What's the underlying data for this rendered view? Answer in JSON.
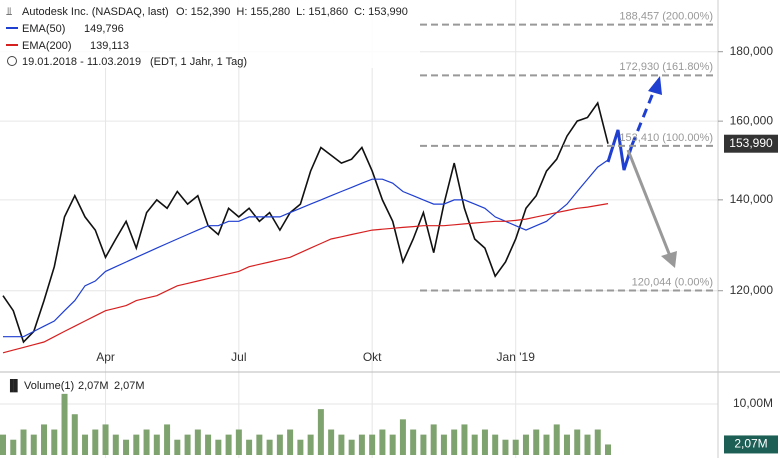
{
  "chart_data": {
    "type": "line",
    "title": "Autodesk Inc. (NASDAQ, last)",
    "ohlc": {
      "labels": [
        "O:",
        "H:",
        "L:",
        "C:"
      ],
      "values": [
        152390,
        155280,
        151860,
        153990
      ],
      "value_labels": [
        "152,390",
        "155,280",
        "151,860",
        "153,990"
      ]
    },
    "period": "19.01.2018 - 11.03.2019",
    "period_note": "(EDT, 1 Jahr, 1 Tag)",
    "log_scale": true,
    "grid": true,
    "categories": [
      null,
      null,
      null,
      null,
      null,
      null,
      null,
      null,
      null,
      null,
      "Apr",
      null,
      null,
      null,
      null,
      null,
      null,
      null,
      null,
      null,
      null,
      null,
      null,
      "Jul",
      null,
      null,
      null,
      null,
      null,
      null,
      null,
      null,
      null,
      null,
      null,
      null,
      "Okt",
      null,
      null,
      null,
      null,
      null,
      null,
      null,
      null,
      null,
      null,
      null,
      null,
      null,
      "Jan '19",
      null,
      null,
      null,
      null,
      null,
      null,
      null,
      null,
      null
    ],
    "ylim": [
      104900,
      196500
    ],
    "yticks": [
      {
        "value": 120000,
        "label": "120,000"
      },
      {
        "value": 140000,
        "label": "140,000"
      },
      {
        "value": 160000,
        "label": "160,000"
      },
      {
        "value": 180000,
        "label": "180,000"
      }
    ],
    "last_price": {
      "value": 153990,
      "label": "153,990"
    },
    "series": [
      {
        "name": "Autodesk Inc.",
        "color": "#111111",
        "values": [
          119000,
          116000,
          110000,
          112000,
          118000,
          125000,
          136000,
          141000,
          136000,
          133000,
          127000,
          131000,
          135000,
          129000,
          137000,
          140000,
          138000,
          142000,
          139000,
          141000,
          134000,
          132000,
          138000,
          136000,
          138000,
          135000,
          137000,
          133000,
          137000,
          139000,
          147000,
          153000,
          151000,
          149000,
          150000,
          153000,
          147000,
          140000,
          135000,
          126000,
          131000,
          137000,
          128000,
          139000,
          149000,
          138000,
          131000,
          129000,
          123000,
          126000,
          131000,
          138000,
          141000,
          147000,
          150000,
          156000,
          160000,
          161000,
          165000,
          153990
        ]
      },
      {
        "name": "EMA(50)",
        "color": "#1f3fd1",
        "value_label": "149,796",
        "values": [
          111000,
          111000,
          111000,
          112000,
          113000,
          114000,
          116000,
          118000,
          121000,
          122000,
          124000,
          125000,
          126000,
          127000,
          128000,
          129000,
          130000,
          131000,
          132000,
          133000,
          134000,
          134000,
          135000,
          135000,
          136000,
          136000,
          136000,
          136000,
          137000,
          138000,
          139000,
          140000,
          141000,
          142000,
          143000,
          144000,
          145000,
          145000,
          144000,
          142000,
          141000,
          140000,
          139000,
          139000,
          140000,
          140000,
          139000,
          138000,
          136000,
          135000,
          134000,
          133000,
          134000,
          135000,
          137000,
          139000,
          142000,
          145000,
          148000,
          149796
        ]
      },
      {
        "name": "EMA(200)",
        "color": "#d62020",
        "value_label": "139,113",
        "values": [
          108000,
          108500,
          109000,
          109500,
          110000,
          111000,
          112000,
          113000,
          114000,
          115000,
          116000,
          116500,
          117000,
          118000,
          118500,
          119000,
          120000,
          121000,
          121500,
          122000,
          122500,
          123000,
          123500,
          124000,
          125000,
          125500,
          126000,
          126500,
          127000,
          128000,
          129000,
          130000,
          131000,
          131500,
          132000,
          132500,
          133000,
          133200,
          133400,
          133600,
          133800,
          134000,
          134000,
          134000,
          134200,
          134400,
          134600,
          134800,
          135000,
          135000,
          135200,
          135500,
          136000,
          136500,
          137000,
          137500,
          138000,
          138300,
          138700,
          139113
        ]
      }
    ],
    "fib_levels": [
      {
        "value": 188457,
        "label": "188,457 (200.00%)"
      },
      {
        "value": 172930,
        "label": "172,930 (161.80%)"
      },
      {
        "value": 153410,
        "label": "153,410 (100.00%)"
      },
      {
        "value": 120044,
        "label": "120,044 (0.00%)"
      }
    ],
    "volume": {
      "name": "Volume(1)",
      "color": "#7fa36f",
      "legend_value": "2,07M",
      "ylim": [
        0,
        15.7
      ],
      "yticks": [
        {
          "value": 10,
          "label": "10,00M"
        }
      ],
      "last": {
        "value": 2.07,
        "label": "2,07M"
      },
      "values": [
        4,
        3,
        5,
        4,
        6,
        5,
        12,
        8,
        4,
        5,
        6,
        4,
        3,
        4,
        5,
        4,
        6,
        3,
        4,
        5,
        4,
        3,
        4,
        5,
        3,
        4,
        3,
        4,
        5,
        3,
        4,
        9,
        5,
        4,
        3,
        4,
        4,
        5,
        4,
        7,
        5,
        4,
        6,
        4,
        5,
        6,
        4,
        5,
        4,
        3,
        3,
        4,
        5,
        4,
        6,
        4,
        5,
        4,
        5,
        2.07
      ]
    }
  }
}
